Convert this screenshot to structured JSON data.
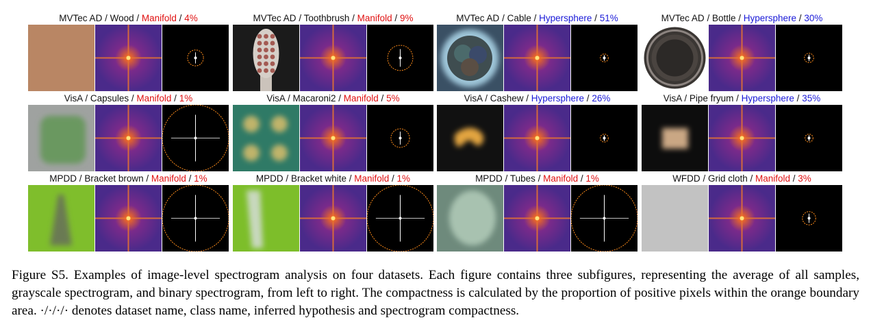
{
  "panels": [
    {
      "dataset": "MVTec AD",
      "cls": "Wood",
      "hyp": "Manifold",
      "pct": "4%",
      "ring": 0.12,
      "avg": "wood"
    },
    {
      "dataset": "MVTec AD",
      "cls": "Toothbrush",
      "hyp": "Manifold",
      "pct": "9%",
      "ring": 0.19,
      "avg": "toothbrush"
    },
    {
      "dataset": "MVTec AD",
      "cls": "Cable",
      "hyp": "Hypersphere",
      "pct": "51%",
      "ring": 0.06,
      "avg": "cable"
    },
    {
      "dataset": "MVTec AD",
      "cls": "Bottle",
      "hyp": "Hypersphere",
      "pct": "30%",
      "ring": 0.07,
      "avg": "bottle"
    },
    {
      "dataset": "VisA",
      "cls": "Capsules",
      "hyp": "Manifold",
      "pct": "1%",
      "ring": 0.5,
      "avg": "capsules"
    },
    {
      "dataset": "VisA",
      "cls": "Macaroni2",
      "hyp": "Manifold",
      "pct": "5%",
      "ring": 0.14,
      "avg": "macaroni"
    },
    {
      "dataset": "VisA",
      "cls": "Cashew",
      "hyp": "Hypersphere",
      "pct": "26%",
      "ring": 0.06,
      "avg": "cashew"
    },
    {
      "dataset": "VisA",
      "cls": "Pipe fryum",
      "hyp": "Hypersphere",
      "pct": "35%",
      "ring": 0.06,
      "avg": "fryum"
    },
    {
      "dataset": "MPDD",
      "cls": "Bracket brown",
      "hyp": "Manifold",
      "pct": "1%",
      "ring": 0.5,
      "avg": "bracketbrown"
    },
    {
      "dataset": "MPDD",
      "cls": "Bracket white",
      "hyp": "Manifold",
      "pct": "1%",
      "ring": 0.5,
      "avg": "bracketwhite"
    },
    {
      "dataset": "MPDD",
      "cls": "Tubes",
      "hyp": "Manifold",
      "pct": "1%",
      "ring": 0.5,
      "avg": "tubes"
    },
    {
      "dataset": "WFDD",
      "cls": "Grid cloth",
      "hyp": "Manifold",
      "pct": "3%",
      "ring": 0.1,
      "avg": "gridcloth"
    }
  ],
  "caption": "Figure S5. Examples of image-level spectrogram analysis on four datasets. Each figure contains three subfigures, representing the average of all samples, grayscale spectrogram, and binary spectrogram, from left to right.  The compactness is calculated by the proportion of positive pixels within the orange boundary area. ·/·/·/· denotes dataset name, class name, inferred hypothesis and spectrogram compactness.",
  "colors": {
    "manifold": "#e01010",
    "hypersphere": "#1a1ad8",
    "ring": "#ff8c1a"
  }
}
